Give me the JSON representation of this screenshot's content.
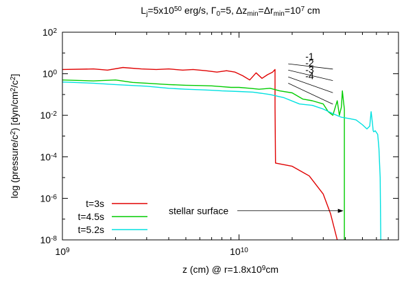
{
  "chart_data": {
    "type": "line",
    "title": {
      "parts": [
        {
          "t": "L"
        },
        {
          "t": "j",
          "s": "sub"
        },
        {
          "t": "=5x10"
        },
        {
          "t": "50",
          "s": "sup"
        },
        {
          "t": " erg/s, Γ"
        },
        {
          "t": "0",
          "s": "sub"
        },
        {
          "t": "=5, Δz"
        },
        {
          "t": "min",
          "s": "sub"
        },
        {
          "t": "=Δr"
        },
        {
          "t": "min",
          "s": "sub"
        },
        {
          "t": "=10"
        },
        {
          "t": "7",
          "s": "sup"
        },
        {
          "t": " cm"
        }
      ]
    },
    "xlabel": {
      "parts": [
        {
          "t": "z (cm) @ r=1.8x10"
        },
        {
          "t": "9",
          "s": "sup"
        },
        {
          "t": "cm"
        }
      ]
    },
    "ylabel": {
      "parts": [
        {
          "t": "log (pressure/c"
        },
        {
          "t": "2",
          "s": "sup"
        },
        {
          "t": ") [dyn/cm"
        },
        {
          "t": "2",
          "s": "sup"
        },
        {
          "t": "/c"
        },
        {
          "t": "2",
          "s": "sup"
        },
        {
          "t": "]"
        }
      ]
    },
    "x_scale": "log",
    "y_scale": "log",
    "xlim": [
      1000000000.0,
      80000000000.0
    ],
    "ylim": [
      1e-08,
      100
    ],
    "x_ticks": [
      {
        "value": 1000000000.0,
        "base": "10",
        "exp": "9"
      },
      {
        "value": 10000000000.0,
        "base": "10",
        "exp": "10"
      }
    ],
    "y_ticks": [
      {
        "value": 100,
        "base": "10",
        "exp": "2"
      },
      {
        "value": 1,
        "base": "10",
        "exp": "0"
      },
      {
        "value": 0.01,
        "base": "10",
        "exp": "-2"
      },
      {
        "value": 0.0001,
        "base": "10",
        "exp": "-4"
      },
      {
        "value": 1e-06,
        "base": "10",
        "exp": "-6"
      },
      {
        "value": 1e-08,
        "base": "10",
        "exp": "-8"
      }
    ],
    "legend_position": "bottom-left",
    "series": [
      {
        "name": "t=3s",
        "color": "#e00000",
        "x": [
          1000000000.0,
          1500000000.0,
          1800000000.0,
          2200000000.0,
          2800000000.0,
          3400000000.0,
          4000000000.0,
          4800000000.0,
          5500000000.0,
          6500000000.0,
          7500000000.0,
          8500000000.0,
          9500000000.0,
          10500000000.0,
          11500000000.0,
          12500000000.0,
          13500000000.0,
          14500000000.0,
          15500000000.0,
          16000000000.0,
          16000000000.0,
          16100000000.0,
          20000000000.0,
          25000000000.0,
          30000000000.0,
          33000000000.0,
          36000000000.0
        ],
        "y": [
          1.6,
          1.7,
          1.5,
          2.0,
          1.7,
          1.6,
          1.7,
          1.5,
          1.6,
          1.4,
          1.2,
          1.4,
          1.2,
          0.8,
          0.5,
          1.1,
          0.6,
          0.9,
          1.2,
          1.6,
          0.025,
          5e-05,
          3.5e-05,
          1.2e-05,
          1.6e-06,
          1.8e-07,
          1e-08
        ]
      },
      {
        "name": "t=4.5s",
        "color": "#00cc00",
        "x": [
          1000000000.0,
          1500000000.0,
          2000000000.0,
          2500000000.0,
          3000000000.0,
          4000000000.0,
          5000000000.0,
          6000000000.0,
          7000000000.0,
          8000000000.0,
          9000000000.0,
          10000000000.0,
          11500000000.0,
          13000000000.0,
          15000000000.0,
          17000000000.0,
          20000000000.0,
          23000000000.0,
          26000000000.0,
          30000000000.0,
          32000000000.0,
          34000000000.0,
          36000000000.0,
          37000000000.0,
          38000000000.0,
          38500000000.0,
          39000000000.0,
          39500000000.0,
          39500000000.0
        ],
        "y": [
          0.5,
          0.45,
          0.5,
          0.38,
          0.35,
          0.3,
          0.28,
          0.27,
          0.26,
          0.24,
          0.22,
          0.22,
          0.2,
          0.18,
          0.2,
          0.15,
          0.12,
          0.06,
          0.05,
          0.035,
          0.015,
          0.01,
          0.05,
          0.01,
          0.025,
          0.15,
          0.05,
          0.02,
          1e-08
        ]
      },
      {
        "name": "t=5.2s",
        "color": "#00e0e0",
        "x": [
          1000000000.0,
          1500000000.0,
          2000000000.0,
          3000000000.0,
          4000000000.0,
          5000000000.0,
          6000000000.0,
          7000000000.0,
          8000000000.0,
          10000000000.0,
          12000000000.0,
          15000000000.0,
          18000000000.0,
          22000000000.0,
          26000000000.0,
          30000000000.0,
          34000000000.0,
          38000000000.0,
          42000000000.0,
          46000000000.0,
          50000000000.0,
          53000000000.0,
          55000000000.0,
          56000000000.0,
          57000000000.0,
          57500000000.0,
          58000000000.0,
          59000000000.0,
          60000000000.0,
          61000000000.0,
          62000000000.0,
          63000000000.0,
          63500000000.0
        ],
        "y": [
          0.4,
          0.35,
          0.3,
          0.25,
          0.2,
          0.18,
          0.17,
          0.16,
          0.15,
          0.14,
          0.13,
          0.1,
          0.07,
          0.035,
          0.03,
          0.02,
          0.012,
          0.008,
          0.007,
          0.006,
          0.0035,
          0.0022,
          0.003,
          0.015,
          0.004,
          0.0018,
          0.0016,
          0.0018,
          0.0015,
          0.0012,
          0.00025,
          1e-05,
          1e-08
        ]
      }
    ],
    "slope_guides": {
      "x_start": 19000000000.0,
      "x_end": 34000000000.0,
      "lines": [
        {
          "label": "-1",
          "slope": -1,
          "y_start": 3.0
        },
        {
          "label": "-2",
          "slope": -2,
          "y_start": 1.5
        },
        {
          "label": "-3",
          "slope": -3,
          "y_start": 0.7
        },
        {
          "label": "-4",
          "slope": -4,
          "y_start": 0.35
        }
      ]
    },
    "annotation": {
      "label": "stellar surface",
      "arrow_from_x": 32000000000.0,
      "arrow_to_x": 39000000000.0,
      "y": 2.5e-07
    }
  }
}
